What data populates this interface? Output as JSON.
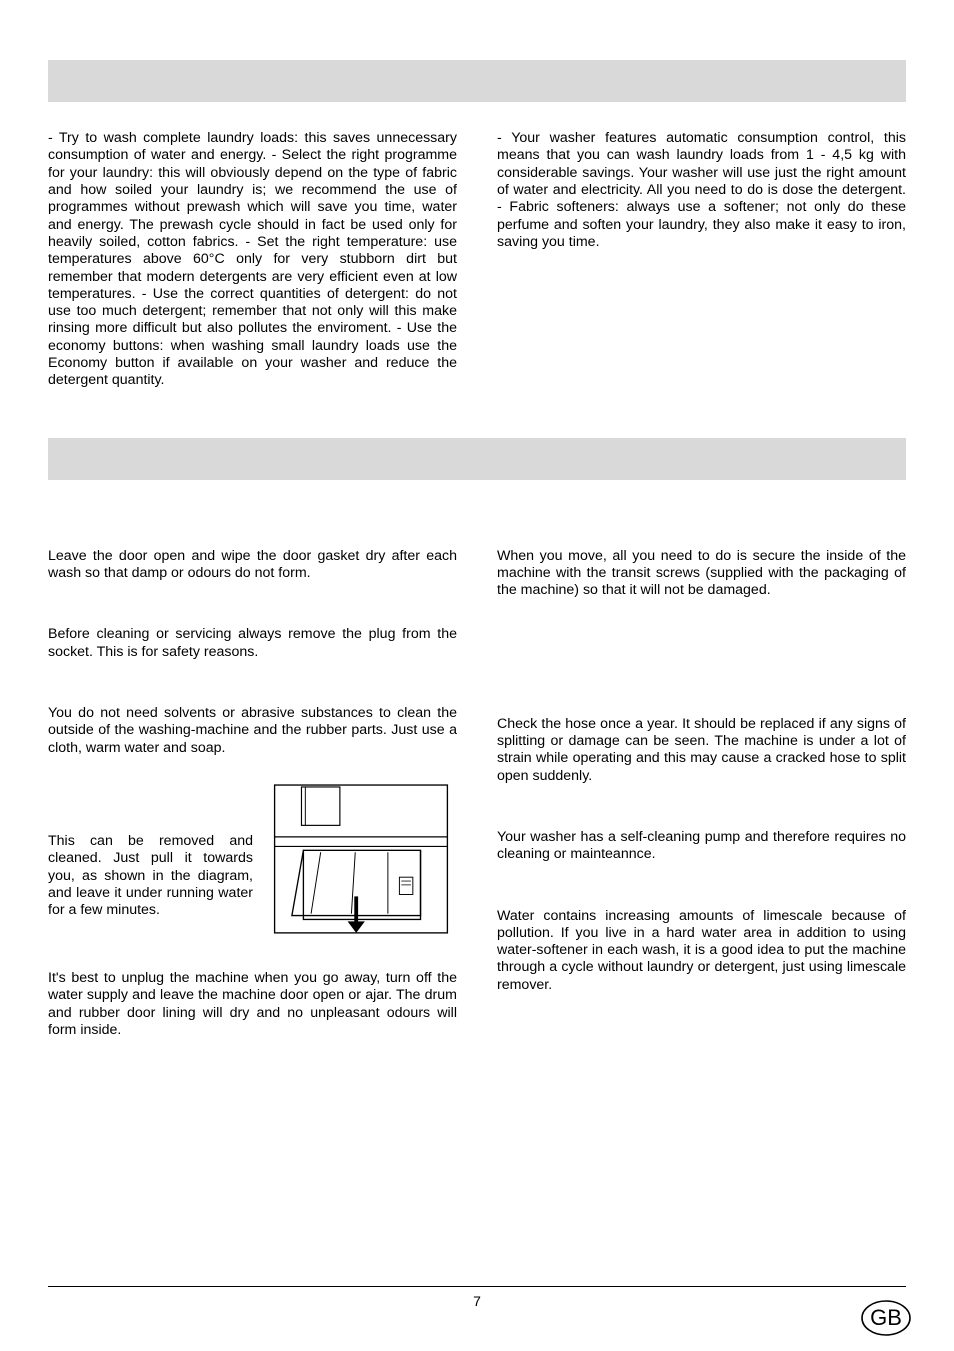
{
  "section1": {
    "left_text": "- Try to wash complete laundry loads: this saves unnecessary consumption of water and energy.\n- Select the right programme for your laundry: this will obviously depend on the type of fabric and how soiled your laundry is; we recommend the use of programmes without prewash which will save you time, water and energy. The prewash cycle should in fact be used only for heavily soiled, cotton fabrics.\n- Set the right temperature: use temperatures above 60°C only for very stubborn dirt but remember that modern detergents are very efficient even at low temperatures.\n- Use the correct quantities of detergent: do not use too much detergent; remember that not only will this make rinsing more difficult but also pollutes the enviroment.\n- Use the economy buttons: when washing small laundry loads use the Economy  button if available on your washer and reduce the detergent quantity.",
    "right_text": "- Your washer features automatic consumption control, this means that you can wash laundry loads from 1 - 4,5 kg with considerable savings. Your washer will use just the right amount of water and electricity. All you need to do is dose the detergent.\n- Fabric softeners: always use a softener; not only do these perfume and soften your laundry, they also make it easy to iron, saving you time."
  },
  "section2": {
    "left": {
      "door_open": "Leave the door open and wipe the door gasket dry after each wash so that damp or odours do not form.",
      "unplug": "Before cleaning or servicing always remove the plug from the socket.  This is for safety reasons.",
      "cleaning_outer": "You do not need solvents or abrasive substances to clean the outside of the washing-machine and the rubber parts. Just use a cloth, warm water and soap.",
      "drawer_text": "This can be removed and cleaned. Just pull it towards you, as shown in the diagram, and leave it under running water for a few minutes.",
      "holiday": "It's best to unplug the machine when you go away, turn off the water supply and leave the machine door open or ajar. The drum and rubber door lining will dry and no unpleasant odours will form inside."
    },
    "right": {
      "moving": "When you move, all you need to do is secure the inside of the machine with the transit screws (supplied with the packaging of the machine) so that it will not be damaged.",
      "hose": "Check the hose once a year. It should be replaced if any signs of splitting or damage can be seen. The machine is under a lot of strain while operating and this may cause a cracked hose to split open suddenly.",
      "pump": "Your washer has a self-cleaning pump and therefore requires no cleaning or mainteannce.",
      "limescale": "Water contains increasing amounts of limescale because of pollution.  If you live in a hard water area in addition to using water-softener in each wash, it is a good idea to put the machine through a cycle without laundry or detergent, just using limescale remover."
    }
  },
  "footer": {
    "page_number": "7",
    "lang": "GB"
  },
  "styles": {
    "bar_color": "#d9d9d9",
    "text_color": "#000000",
    "font_size_body": 14.2,
    "font_size_page": 14,
    "line_color": "#000000"
  }
}
